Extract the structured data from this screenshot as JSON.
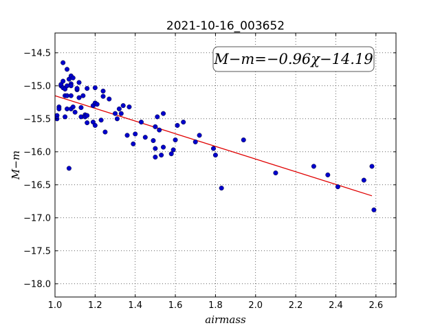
{
  "chart_data": {
    "type": "scatter",
    "title": "2021-10-16_003652",
    "xlabel": "airmass",
    "ylabel": "M−m",
    "xlim": [
      1.0,
      2.7
    ],
    "ylim": [
      -18.2,
      -14.2
    ],
    "x_ticks": [
      "1.0",
      "1.2",
      "1.4",
      "1.6",
      "1.8",
      "2.0",
      "2.2",
      "2.4",
      "2.6"
    ],
    "x_tick_values": [
      1.0,
      1.2,
      1.4,
      1.6,
      1.8,
      2.0,
      2.2,
      2.4,
      2.6
    ],
    "y_ticks": [
      "−14.5",
      "−15.0",
      "−15.5",
      "−16.0",
      "−16.5",
      "−17.0",
      "−17.5",
      "−18.0"
    ],
    "y_tick_values": [
      -14.5,
      -15.0,
      -15.5,
      -16.0,
      -16.5,
      -17.0,
      -17.5,
      -18.0
    ],
    "grid": true,
    "annotation": "M−m=−0.96χ−14.19",
    "fit_line": {
      "slope": -0.96,
      "intercept": -14.19,
      "x_range": [
        1.0,
        2.58
      ],
      "color": "#e00000"
    },
    "point_color": "#0000cc",
    "points": [
      [
        1.01,
        -15.45
      ],
      [
        1.01,
        -15.5
      ],
      [
        1.02,
        -15.32
      ],
      [
        1.02,
        -15.35
      ],
      [
        1.03,
        -15.0
      ],
      [
        1.03,
        -14.98
      ],
      [
        1.04,
        -14.93
      ],
      [
        1.04,
        -14.65
      ],
      [
        1.04,
        -15.03
      ],
      [
        1.05,
        -15.15
      ],
      [
        1.05,
        -15.47
      ],
      [
        1.05,
        -15.05
      ],
      [
        1.06,
        -15.35
      ],
      [
        1.06,
        -15.15
      ],
      [
        1.06,
        -15.0
      ],
      [
        1.06,
        -14.75
      ],
      [
        1.07,
        -14.9
      ],
      [
        1.07,
        -16.25
      ],
      [
        1.08,
        -15.15
      ],
      [
        1.08,
        -14.97
      ],
      [
        1.08,
        -15.0
      ],
      [
        1.08,
        -14.85
      ],
      [
        1.08,
        -15.35
      ],
      [
        1.09,
        -14.88
      ],
      [
        1.09,
        -15.32
      ],
      [
        1.1,
        -15.4
      ],
      [
        1.11,
        -15.06
      ],
      [
        1.11,
        -15.04
      ],
      [
        1.12,
        -14.95
      ],
      [
        1.12,
        -15.18
      ],
      [
        1.13,
        -15.33
      ],
      [
        1.13,
        -15.47
      ],
      [
        1.14,
        -15.15
      ],
      [
        1.15,
        -15.44
      ],
      [
        1.15,
        -15.47
      ],
      [
        1.16,
        -15.04
      ],
      [
        1.16,
        -15.45
      ],
      [
        1.16,
        -15.56
      ],
      [
        1.19,
        -15.55
      ],
      [
        1.19,
        -15.3
      ],
      [
        1.2,
        -15.6
      ],
      [
        1.2,
        -15.26
      ],
      [
        1.2,
        -15.03
      ],
      [
        1.21,
        -15.28
      ],
      [
        1.23,
        -15.52
      ],
      [
        1.24,
        -15.08
      ],
      [
        1.24,
        -15.16
      ],
      [
        1.25,
        -15.7
      ],
      [
        1.27,
        -15.2
      ],
      [
        1.3,
        -15.42
      ],
      [
        1.31,
        -15.5
      ],
      [
        1.32,
        -15.35
      ],
      [
        1.33,
        -15.42
      ],
      [
        1.34,
        -15.3
      ],
      [
        1.36,
        -15.75
      ],
      [
        1.37,
        -15.32
      ],
      [
        1.39,
        -15.88
      ],
      [
        1.4,
        -15.73
      ],
      [
        1.43,
        -15.55
      ],
      [
        1.45,
        -15.78
      ],
      [
        1.49,
        -15.83
      ],
      [
        1.5,
        -15.62
      ],
      [
        1.5,
        -15.95
      ],
      [
        1.5,
        -16.08
      ],
      [
        1.51,
        -15.47
      ],
      [
        1.52,
        -15.67
      ],
      [
        1.53,
        -16.05
      ],
      [
        1.54,
        -15.42
      ],
      [
        1.54,
        -15.93
      ],
      [
        1.58,
        -16.03
      ],
      [
        1.59,
        -15.97
      ],
      [
        1.6,
        -15.82
      ],
      [
        1.61,
        -15.6
      ],
      [
        1.64,
        -15.55
      ],
      [
        1.7,
        -15.85
      ],
      [
        1.72,
        -15.75
      ],
      [
        1.79,
        -15.95
      ],
      [
        1.8,
        -16.05
      ],
      [
        1.83,
        -16.55
      ],
      [
        1.94,
        -15.82
      ],
      [
        2.1,
        -16.32
      ],
      [
        2.29,
        -16.22
      ],
      [
        2.36,
        -16.35
      ],
      [
        2.41,
        -16.53
      ],
      [
        2.54,
        -16.43
      ],
      [
        2.58,
        -16.22
      ],
      [
        2.59,
        -16.88
      ]
    ]
  }
}
